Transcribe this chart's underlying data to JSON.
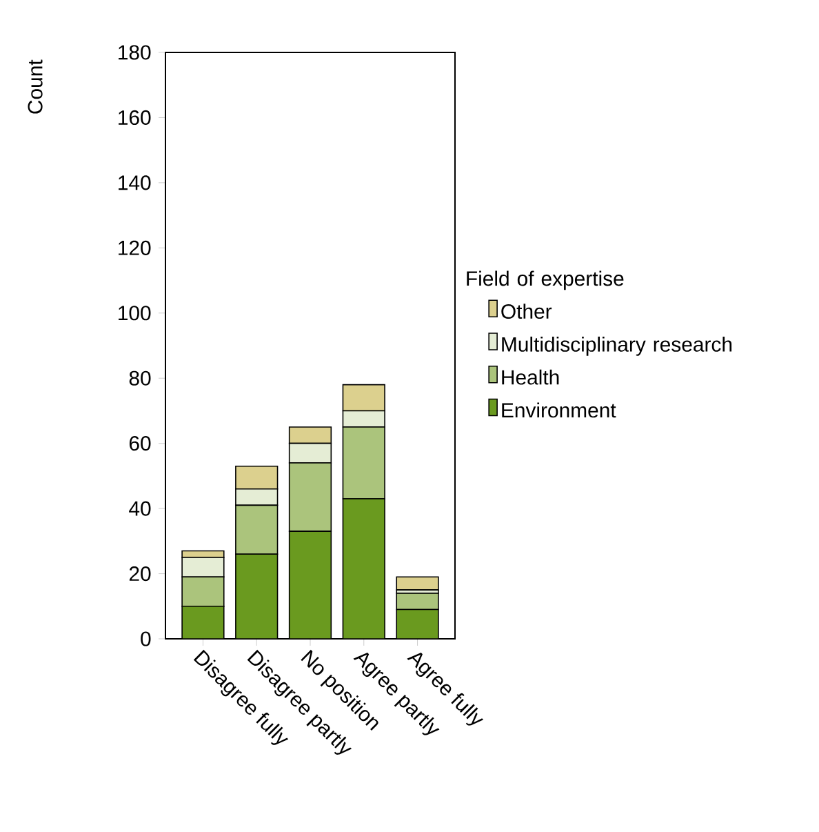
{
  "chart_data": {
    "type": "bar",
    "stacked": true,
    "ylabel": "Count",
    "legend_title": "Field of expertise",
    "legend": "right",
    "categories": [
      "Disagree fully",
      "Disagree partly",
      "No position",
      "Agree partly",
      "Agree fully"
    ],
    "series": [
      {
        "name": "Environment",
        "color": "#6a9a1f",
        "values": [
          10,
          26,
          33,
          43,
          9
        ]
      },
      {
        "name": "Health",
        "color": "#abc47c",
        "values": [
          9,
          15,
          21,
          22,
          5
        ]
      },
      {
        "name": "Multidisciplinary research",
        "color": "#e5edd5",
        "values": [
          6,
          5,
          6,
          5,
          1
        ]
      },
      {
        "name": "Other",
        "color": "#dcd08e",
        "values": [
          2,
          7,
          5,
          8,
          4
        ]
      }
    ],
    "ylim": [
      0,
      180
    ],
    "yticks": [
      0,
      20,
      40,
      60,
      80,
      100,
      120,
      140,
      160,
      180
    ],
    "grid": false
  }
}
